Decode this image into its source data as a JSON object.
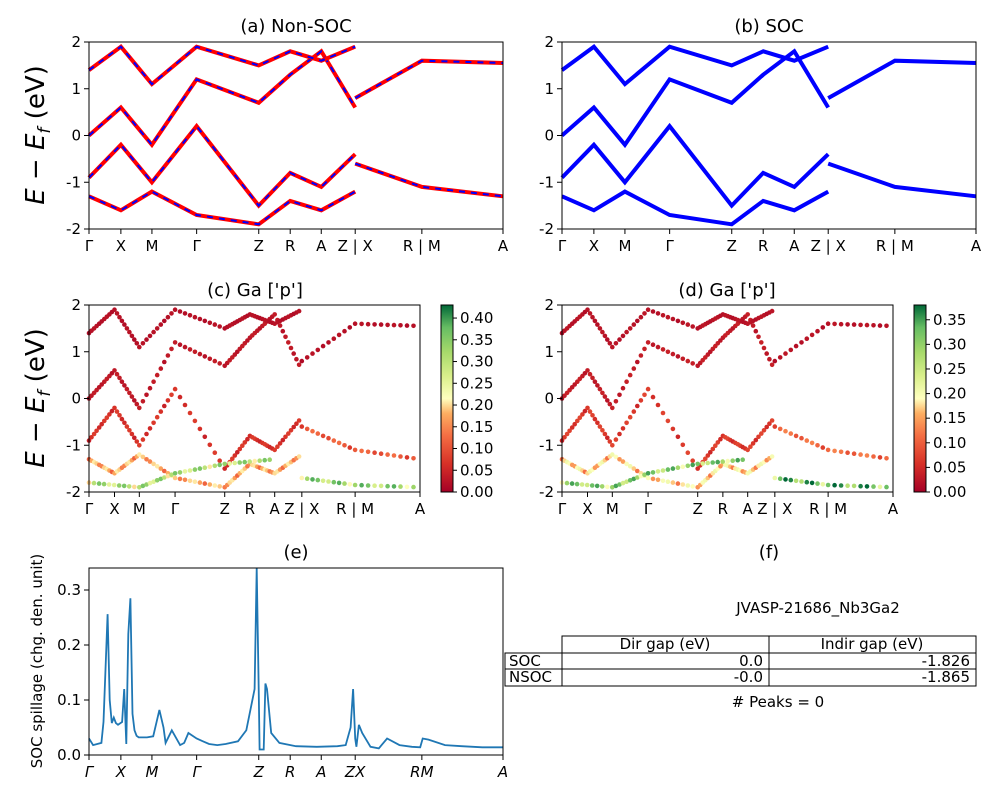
{
  "page_title": "JVASP-21686_Nb3Ga2",
  "shared": {
    "ylabel_energy": "E − E_f (eV)",
    "ylim": [
      -2,
      2
    ],
    "yticks": [
      2,
      1,
      0,
      -1,
      -2
    ],
    "kpath_labels": [
      "Γ",
      "X",
      "M",
      "Γ",
      "Z",
      "R",
      "A",
      "Z | X",
      "R | M",
      "A"
    ],
    "kpath_positions": [
      0,
      0.077,
      0.152,
      0.26,
      0.41,
      0.486,
      0.561,
      0.643,
      0.804,
      1.0
    ]
  },
  "chart_data": [
    {
      "id": "a",
      "type": "line",
      "title": "(a) Non-SOC",
      "ylabel": "E − E_f (eV)",
      "ylim": [
        -2,
        2
      ],
      "series": [
        {
          "style": "red solid with blue dashes",
          "x": [
            0,
            0.077,
            0.152,
            0.26,
            0.41,
            0.486,
            0.561,
            0.643
          ],
          "y": [
            -0.9,
            -0.2,
            -1.0,
            0.2,
            -1.5,
            -0.8,
            -1.1,
            -0.4
          ]
        },
        {
          "style": "red solid with blue dashes",
          "x": [
            0,
            0.077,
            0.152,
            0.26,
            0.41,
            0.486,
            0.561,
            0.643
          ],
          "y": [
            0.0,
            0.6,
            -0.2,
            1.2,
            0.7,
            1.3,
            1.8,
            0.6
          ]
        },
        {
          "style": "red solid with blue dashes",
          "x": [
            0,
            0.077,
            0.152,
            0.26,
            0.41,
            0.486,
            0.561,
            0.643
          ],
          "y": [
            1.4,
            1.9,
            1.1,
            1.9,
            1.5,
            1.8,
            1.6,
            1.9
          ]
        },
        {
          "style": "red solid with blue dashes",
          "x": [
            0,
            0.077,
            0.152,
            0.26,
            0.41,
            0.486,
            0.561,
            0.643
          ],
          "y": [
            -1.3,
            -1.6,
            -1.2,
            -1.7,
            -1.9,
            -1.4,
            -1.6,
            -1.2
          ]
        },
        {
          "style": "red solid with blue dashes",
          "x": [
            0.643,
            0.804,
            1.0
          ],
          "y": [
            0.8,
            1.6,
            1.55
          ]
        },
        {
          "style": "red solid with blue dashes",
          "x": [
            0.643,
            0.804,
            1.0
          ],
          "y": [
            -0.6,
            -1.1,
            -1.3
          ]
        }
      ]
    },
    {
      "id": "b",
      "type": "line",
      "title": "(b) SOC",
      "ylim": [
        -2,
        2
      ],
      "series": [
        {
          "style": "blue",
          "x": [
            0,
            0.077,
            0.152,
            0.26,
            0.41,
            0.486,
            0.561,
            0.643
          ],
          "y": [
            -0.9,
            -0.2,
            -1.0,
            0.2,
            -1.5,
            -0.8,
            -1.1,
            -0.4
          ]
        },
        {
          "style": "blue",
          "x": [
            0,
            0.077,
            0.152,
            0.26,
            0.41,
            0.486,
            0.561,
            0.643
          ],
          "y": [
            0.0,
            0.6,
            -0.2,
            1.2,
            0.7,
            1.3,
            1.8,
            0.6
          ]
        },
        {
          "style": "blue",
          "x": [
            0,
            0.077,
            0.152,
            0.26,
            0.41,
            0.486,
            0.561,
            0.643
          ],
          "y": [
            1.4,
            1.9,
            1.1,
            1.9,
            1.5,
            1.8,
            1.6,
            1.9
          ]
        },
        {
          "style": "blue",
          "x": [
            0,
            0.077,
            0.152,
            0.26,
            0.41,
            0.486,
            0.561,
            0.643
          ],
          "y": [
            -1.3,
            -1.6,
            -1.2,
            -1.7,
            -1.9,
            -1.4,
            -1.6,
            -1.2
          ]
        },
        {
          "style": "blue",
          "x": [
            0.643,
            0.804,
            1.0
          ],
          "y": [
            0.8,
            1.6,
            1.55
          ]
        },
        {
          "style": "blue",
          "x": [
            0.643,
            0.804,
            1.0
          ],
          "y": [
            -0.6,
            -1.1,
            -1.3
          ]
        }
      ]
    },
    {
      "id": "c",
      "type": "scatter",
      "title": "(c)  Ga ['p']",
      "ylabel": "E − E_f (eV)",
      "ylim": [
        -2,
        2
      ],
      "colorbar": {
        "cmap": "RdYlGn",
        "min": 0.0,
        "max": 0.43,
        "ticks": [
          "0.40",
          "0.35",
          "0.30",
          "0.25",
          "0.20",
          "0.15",
          "0.10",
          "0.05",
          "0.00"
        ],
        "tick_values": [
          0.4,
          0.35,
          0.3,
          0.25,
          0.2,
          0.15,
          0.1,
          0.05,
          0.0
        ]
      },
      "bands": [
        {
          "x": [
            0,
            0.077,
            0.152,
            0.26,
            0.41,
            0.486,
            0.561,
            0.643
          ],
          "y": [
            -0.9,
            -0.2,
            -1.0,
            0.2,
            -1.5,
            -0.8,
            -1.1,
            -0.4
          ],
          "weight": 0.06
        },
        {
          "x": [
            0,
            0.077,
            0.152,
            0.26,
            0.41,
            0.486,
            0.561,
            0.643
          ],
          "y": [
            0.0,
            0.6,
            -0.2,
            1.2,
            0.7,
            1.3,
            1.8,
            0.6
          ],
          "weight": 0.03
        },
        {
          "x": [
            0,
            0.077,
            0.152,
            0.26,
            0.41,
            0.486,
            0.561,
            0.643
          ],
          "y": [
            1.4,
            1.9,
            1.1,
            1.9,
            1.5,
            1.8,
            1.6,
            1.9
          ],
          "weight": 0.02
        },
        {
          "x": [
            0,
            0.077,
            0.152,
            0.26,
            0.41,
            0.486,
            0.561,
            0.643
          ],
          "y": [
            -1.3,
            -1.6,
            -1.2,
            -1.7,
            -1.9,
            -1.4,
            -1.6,
            -1.2
          ],
          "weight": 0.16
        },
        {
          "x": [
            0,
            0.152,
            0.26,
            0.41,
            0.561
          ],
          "y": [
            -1.8,
            -1.9,
            -1.6,
            -1.4,
            -1.3
          ],
          "weight": 0.28
        },
        {
          "x": [
            0.643,
            0.804,
            1.0
          ],
          "y": [
            0.8,
            1.6,
            1.55
          ],
          "weight": 0.02
        },
        {
          "x": [
            0.643,
            0.804,
            1.0
          ],
          "y": [
            -0.6,
            -1.1,
            -1.3
          ],
          "weight": 0.1
        },
        {
          "x": [
            0.643,
            0.804,
            1.0
          ],
          "y": [
            -1.7,
            -1.85,
            -1.9
          ],
          "weight": 0.3
        }
      ]
    },
    {
      "id": "d",
      "type": "scatter",
      "title": "(d) Ga ['p']",
      "ylim": [
        -2,
        2
      ],
      "colorbar": {
        "cmap": "RdYlGn",
        "min": 0.0,
        "max": 0.38,
        "ticks": [
          "0.35",
          "0.30",
          "0.25",
          "0.20",
          "0.15",
          "0.10",
          "0.05",
          "0.00"
        ],
        "tick_values": [
          0.35,
          0.3,
          0.25,
          0.2,
          0.15,
          0.1,
          0.05,
          0.0
        ]
      },
      "bands": [
        {
          "x": [
            0,
            0.077,
            0.152,
            0.26,
            0.41,
            0.486,
            0.561,
            0.643
          ],
          "y": [
            -0.9,
            -0.2,
            -1.0,
            0.2,
            -1.5,
            -0.8,
            -1.1,
            -0.4
          ],
          "weight": 0.06
        },
        {
          "x": [
            0,
            0.077,
            0.152,
            0.26,
            0.41,
            0.486,
            0.561,
            0.643
          ],
          "y": [
            0.0,
            0.6,
            -0.2,
            1.2,
            0.7,
            1.3,
            1.8,
            0.6
          ],
          "weight": 0.03
        },
        {
          "x": [
            0,
            0.077,
            0.152,
            0.26,
            0.41,
            0.486,
            0.561,
            0.643
          ],
          "y": [
            1.4,
            1.9,
            1.1,
            1.9,
            1.5,
            1.8,
            1.6,
            1.9
          ],
          "weight": 0.02
        },
        {
          "x": [
            0,
            0.077,
            0.152,
            0.26,
            0.41,
            0.486,
            0.561,
            0.643
          ],
          "y": [
            -1.3,
            -1.6,
            -1.2,
            -1.7,
            -1.9,
            -1.4,
            -1.6,
            -1.2
          ],
          "weight": 0.16
        },
        {
          "x": [
            0,
            0.152,
            0.26,
            0.41,
            0.561
          ],
          "y": [
            -1.8,
            -1.9,
            -1.6,
            -1.4,
            -1.3
          ],
          "weight": 0.27
        },
        {
          "x": [
            0.643,
            0.804,
            1.0
          ],
          "y": [
            0.8,
            1.6,
            1.55
          ],
          "weight": 0.02
        },
        {
          "x": [
            0.643,
            0.804,
            1.0
          ],
          "y": [
            -0.6,
            -1.1,
            -1.3
          ],
          "weight": 0.1
        },
        {
          "x": [
            0.643,
            0.804,
            1.0
          ],
          "y": [
            -1.7,
            -1.85,
            -1.9
          ],
          "weight": 0.3
        }
      ]
    },
    {
      "id": "e",
      "type": "line",
      "title": "(e)",
      "ylabel": "SOC spillage (chg. den. unit)",
      "ylim": [
        0.0,
        0.34
      ],
      "yticks": [
        0.3,
        0.2,
        0.1,
        0.0
      ],
      "yticklabels": [
        "0.3",
        "0.2",
        "0.1",
        "0.0"
      ],
      "xticks": [
        0,
        0.077,
        0.152,
        0.26,
        0.41,
        0.486,
        0.561,
        0.643,
        0.804,
        1.0
      ],
      "xticklabels": [
        "Γ",
        "X",
        "M",
        "Γ",
        "Z",
        "R",
        "A",
        "ZX",
        "RM",
        "A"
      ],
      "series": [
        {
          "color": "#1f77b4",
          "x": [
            0,
            0.01,
            0.03,
            0.035,
            0.045,
            0.05,
            0.055,
            0.06,
            0.065,
            0.07,
            0.08,
            0.085,
            0.09,
            0.095,
            0.1,
            0.105,
            0.11,
            0.115,
            0.12,
            0.13,
            0.14,
            0.155,
            0.17,
            0.18,
            0.185,
            0.2,
            0.22,
            0.225,
            0.23,
            0.24,
            0.26,
            0.275,
            0.29,
            0.31,
            0.33,
            0.36,
            0.38,
            0.4,
            0.405,
            0.41,
            0.412,
            0.417,
            0.422,
            0.426,
            0.43,
            0.44,
            0.46,
            0.5,
            0.55,
            0.6,
            0.62,
            0.632,
            0.638,
            0.643,
            0.646,
            0.652,
            0.66,
            0.68,
            0.7,
            0.72,
            0.75,
            0.78,
            0.8,
            0.806,
            0.82,
            0.86,
            0.9,
            0.95,
            1.0
          ],
          "y": [
            0.03,
            0.018,
            0.022,
            0.06,
            0.256,
            0.1,
            0.058,
            0.068,
            0.058,
            0.055,
            0.06,
            0.12,
            0.02,
            0.22,
            0.285,
            0.075,
            0.045,
            0.035,
            0.032,
            0.032,
            0.032,
            0.034,
            0.082,
            0.05,
            0.022,
            0.045,
            0.018,
            0.02,
            0.022,
            0.04,
            0.03,
            0.025,
            0.02,
            0.018,
            0.02,
            0.025,
            0.045,
            0.12,
            0.34,
            0.12,
            0.01,
            0.01,
            0.01,
            0.13,
            0.12,
            0.04,
            0.022,
            0.016,
            0.015,
            0.016,
            0.018,
            0.05,
            0.12,
            0.03,
            0.015,
            0.055,
            0.04,
            0.015,
            0.012,
            0.03,
            0.018,
            0.015,
            0.014,
            0.03,
            0.028,
            0.018,
            0.016,
            0.014,
            0.014
          ]
        }
      ]
    }
  ],
  "panel_f": {
    "title": "(f)",
    "material_id": "JVASP-21686_Nb3Ga2",
    "table": {
      "headers": [
        "Dir gap (eV)",
        "Indir gap (eV)"
      ],
      "rows": [
        {
          "label": "SOC",
          "dir": "0.0",
          "indir": "-1.826"
        },
        {
          "label": "NSOC",
          "dir": "-0.0",
          "indir": "-1.865"
        }
      ]
    },
    "peaks_text": "# Peaks = 0"
  }
}
